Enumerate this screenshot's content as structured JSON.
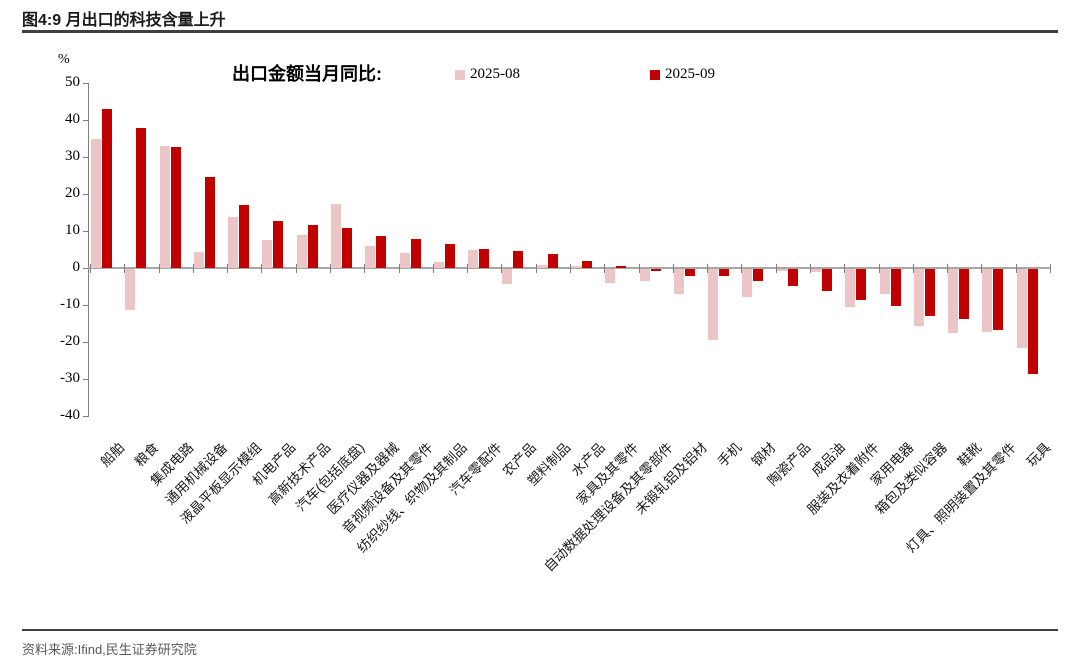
{
  "header": {
    "title": "图4:9 月出口的科技含量上升"
  },
  "footer": {
    "source": "资料来源:Ifind,民生证券研究院"
  },
  "chart_data": {
    "type": "bar",
    "title": "出口金额当月同比:",
    "unit_label": "%",
    "legend_position": "top",
    "grid": "off",
    "ylim": [
      -40,
      50
    ],
    "y_ticks": [
      50,
      40,
      30,
      20,
      10,
      0,
      -10,
      -20,
      -30,
      -40
    ],
    "legend": [
      {
        "name": "2025-08",
        "color": "#ECC6C6"
      },
      {
        "name": "2025-09",
        "color": "#C00000"
      }
    ],
    "categories": [
      "船舶",
      "粮食",
      "集成电路",
      "通用机械设备",
      "液晶平板显示模组",
      "机电产品",
      "高新技术产品",
      "汽车(包括底盘)",
      "医疗仪器及器械",
      "音视频设备及其零件",
      "纺织纱线、织物及其制品",
      "汽车零配件",
      "农产品",
      "塑料制品",
      "水产品",
      "家具及其零件",
      "自动数据处理设备及其零部件",
      "未锻轧铝及铝材",
      "手机",
      "钢材",
      "陶瓷产品",
      "成品油",
      "服装及衣着附件",
      "家用电器",
      "箱包及类似容器",
      "鞋靴",
      "灯具、照明装置及其零件",
      "玩具"
    ],
    "series": [
      {
        "name": "2025-08",
        "color": "#ECC6C6",
        "values": [
          35,
          -11,
          33,
          4.2,
          13.8,
          7.6,
          9,
          17.3,
          6,
          4.1,
          1.5,
          4.9,
          -4.1,
          0.9,
          0.6,
          -3.8,
          -3.3,
          -6.8,
          -19.2,
          -7.7,
          -0.5,
          -0.7,
          -10.4,
          -6.8,
          -15.3,
          -17.4,
          -16.9,
          -21.3
        ]
      },
      {
        "name": "2025-09",
        "color": "#C00000",
        "values": [
          43,
          37.8,
          32.7,
          24.5,
          17,
          12.7,
          11.6,
          10.8,
          8.6,
          7.8,
          6.5,
          5.2,
          4.5,
          3.9,
          2,
          0.6,
          -0.5,
          -1.8,
          -2,
          -3.3,
          -4.7,
          -6,
          -8.3,
          -10.1,
          -12.7,
          -13.5,
          -16.5,
          -28.3
        ]
      }
    ]
  }
}
